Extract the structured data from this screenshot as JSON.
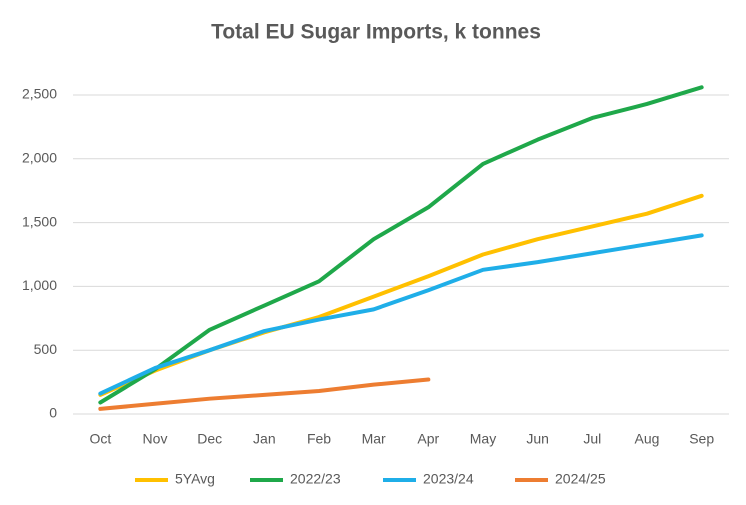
{
  "chart_data": {
    "type": "line",
    "title": "Total EU Sugar Imports, k tonnes",
    "categories": [
      "Oct",
      "Nov",
      "Dec",
      "Jan",
      "Feb",
      "Mar",
      "Apr",
      "May",
      "Jun",
      "Jul",
      "Aug",
      "Sep"
    ],
    "series": [
      {
        "name": "5YAvg",
        "color": "#FFC000",
        "values": [
          150,
          340,
          500,
          640,
          760,
          920,
          1080,
          1250,
          1370,
          1470,
          1570,
          1710
        ]
      },
      {
        "name": "2022/23",
        "color": "#1FA84A",
        "values": [
          90,
          350,
          660,
          850,
          1040,
          1370,
          1620,
          1960,
          2150,
          2320,
          2430,
          2560
        ]
      },
      {
        "name": "2023/24",
        "color": "#1FAEE8",
        "values": [
          160,
          360,
          500,
          650,
          740,
          820,
          970,
          1130,
          1190,
          1260,
          1330,
          1400
        ]
      },
      {
        "name": "2024/25",
        "color": "#ED7D31",
        "values": [
          40,
          80,
          120,
          150,
          180,
          230,
          270,
          null,
          null,
          null,
          null,
          null
        ]
      }
    ],
    "ylim": [
      0,
      2500
    ],
    "yticks": [
      0,
      500,
      {
        "value": 1000,
        "label": "1,000"
      },
      {
        "value": 1500,
        "label": "1,500"
      },
      {
        "value": 2000,
        "label": "2,000"
      },
      {
        "value": 2500,
        "label": "2,500"
      }
    ],
    "grid": true,
    "legend": "bottom"
  }
}
